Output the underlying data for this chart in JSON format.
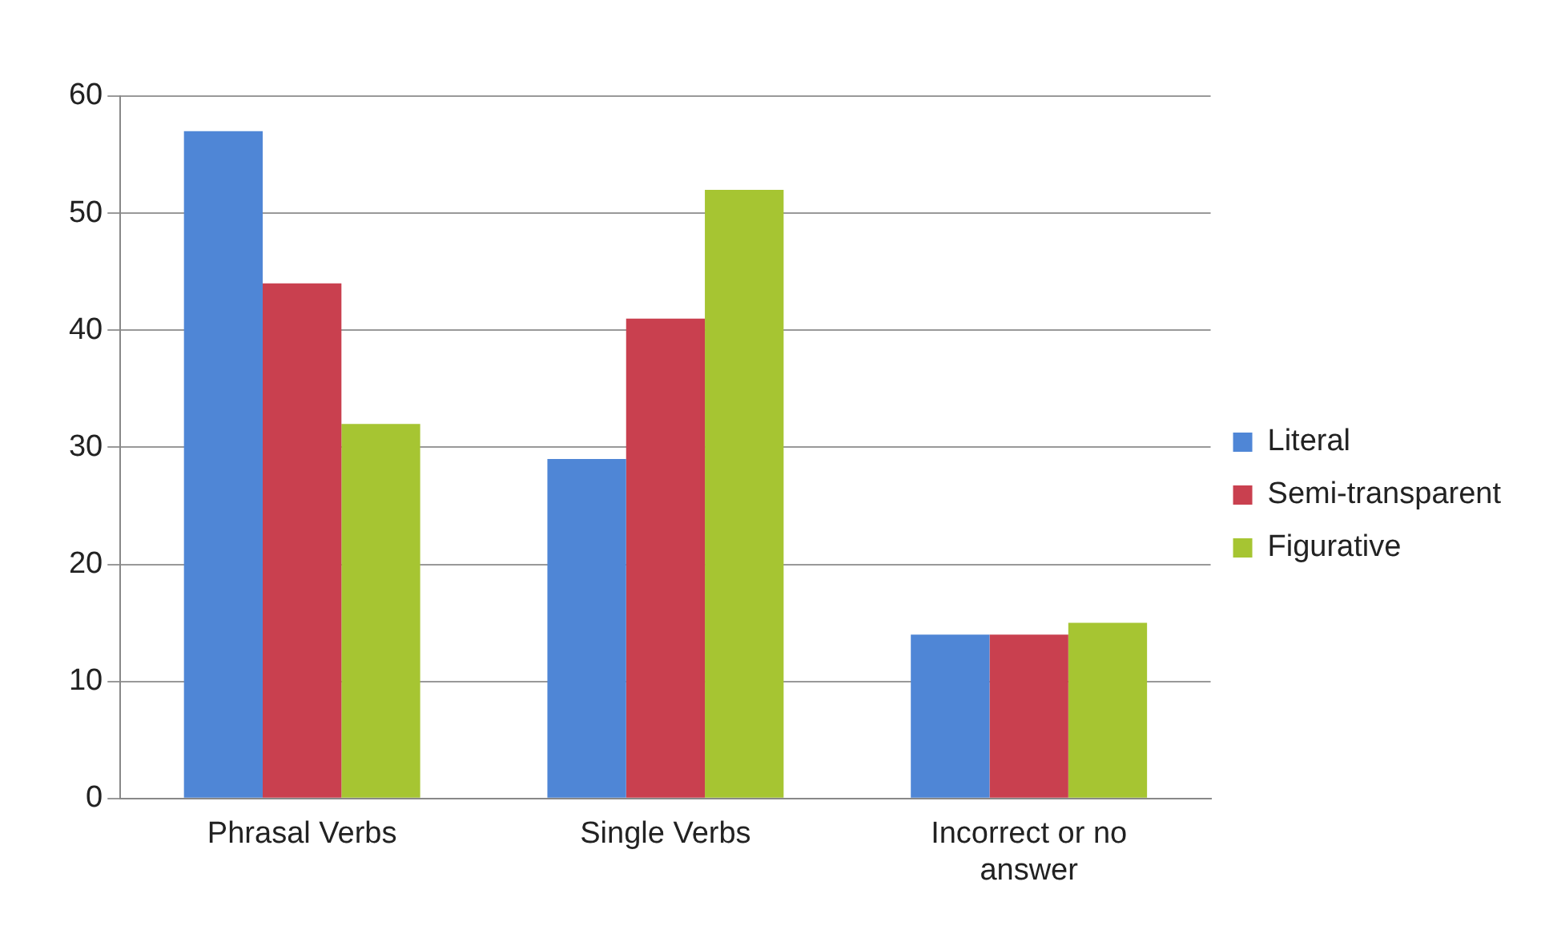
{
  "chart_data": {
    "type": "bar",
    "categories": [
      "Phrasal Verbs",
      "Single Verbs",
      "Incorrect or no answer"
    ],
    "series": [
      {
        "name": "Literal",
        "color": "#4f86d6",
        "values": [
          57,
          29,
          14
        ]
      },
      {
        "name": "Semi-transparent",
        "color": "#c9404f",
        "values": [
          44,
          41,
          14
        ]
      },
      {
        "name": "Figurative",
        "color": "#a6c532",
        "values": [
          32,
          52,
          15
        ]
      }
    ],
    "ylim": [
      0,
      60
    ],
    "yticks": [
      0,
      10,
      20,
      30,
      40,
      50,
      60
    ],
    "grid": "y",
    "legend": "right"
  }
}
